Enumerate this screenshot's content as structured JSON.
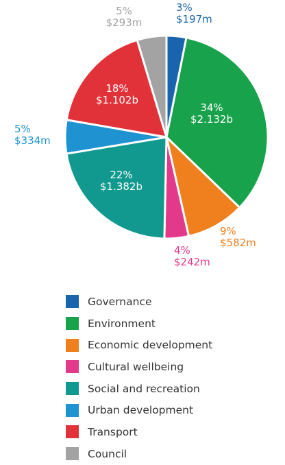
{
  "chart_data": {
    "type": "pie",
    "title": "",
    "categories": [
      "Governance",
      "Environment",
      "Economic development",
      "Cultural wellbeing",
      "Social and recreation",
      "Urban development",
      "Transport",
      "Council"
    ],
    "values": [
      197,
      2132,
      582,
      242,
      1382,
      334,
      1102,
      293
    ],
    "value_unit": "$m",
    "slice_labels": [
      {
        "percent": "3%",
        "amount": "$197m"
      },
      {
        "percent": "34%",
        "amount": "$2.132b"
      },
      {
        "percent": "9%",
        "amount": "$582m"
      },
      {
        "percent": "4%",
        "amount": "$242m"
      },
      {
        "percent": "22%",
        "amount": "$1.382b"
      },
      {
        "percent": "5%",
        "amount": "$334m"
      },
      {
        "percent": "18%",
        "amount": "$1.102b"
      },
      {
        "percent": "5%",
        "amount": "$293m"
      }
    ],
    "colors": [
      "#1a64ad",
      "#17a24b",
      "#f07f1d",
      "#e2398a",
      "#12998f",
      "#1f92d2",
      "#e23239",
      "#a3a3a3"
    ],
    "legend_placement": "bottom"
  }
}
